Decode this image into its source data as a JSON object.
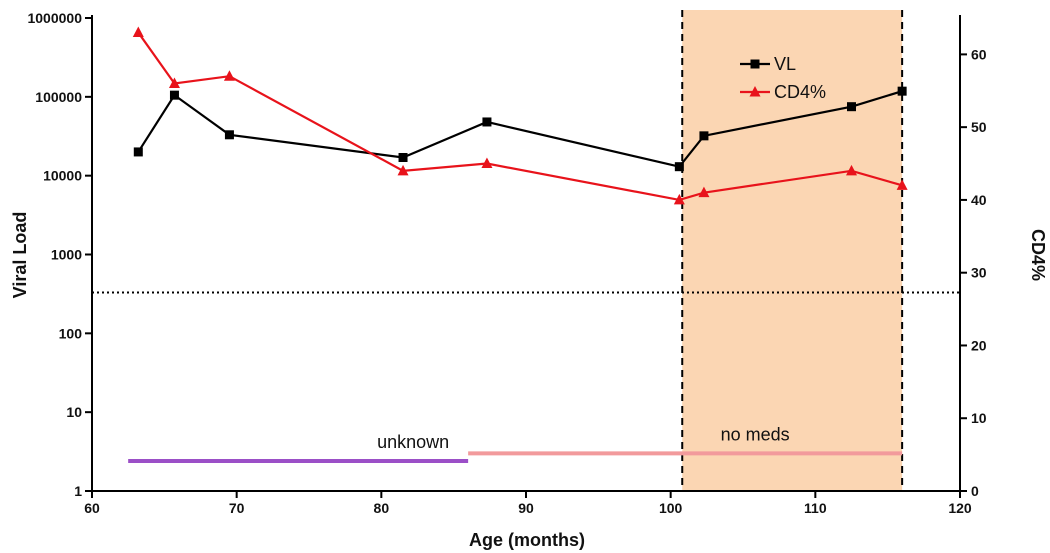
{
  "chart_data": {
    "type": "line",
    "xlabel": "Age (months)",
    "ylabel_left": "Viral Load",
    "ylabel_right": "CD4%",
    "x_range": [
      60,
      120
    ],
    "x_ticks": [
      60,
      70,
      80,
      90,
      100,
      110,
      120
    ],
    "y_left_scale": "log",
    "y_left_range": [
      1,
      1000000
    ],
    "y_left_ticks": [
      1,
      10,
      100,
      1000,
      10000,
      100000,
      1000000
    ],
    "y_right_range": [
      0,
      65
    ],
    "y_right_ticks": [
      0,
      10,
      20,
      30,
      40,
      50,
      60
    ],
    "grid": false,
    "legend_position": "top-right",
    "series": [
      {
        "name": "VL",
        "axis": "left",
        "color": "#000000",
        "marker": "square",
        "x": [
          63.2,
          65.7,
          69.5,
          81.5,
          87.3,
          100.6,
          102.3,
          112.5,
          116.0
        ],
        "y": [
          20000,
          105000,
          33000,
          17000,
          48000,
          13000,
          32000,
          75000,
          118000
        ]
      },
      {
        "name": "CD4%",
        "axis": "right",
        "color": "#e8131b",
        "marker": "triangle",
        "x": [
          63.2,
          65.7,
          69.5,
          81.5,
          87.3,
          100.6,
          102.3,
          112.5,
          116.0
        ],
        "y": [
          63,
          56,
          57,
          44,
          45,
          40,
          41,
          44,
          42
        ]
      }
    ],
    "reference_line": {
      "axis": "left",
      "y": 330,
      "style": "dotted",
      "color": "#000000"
    },
    "shaded_region": {
      "x_start": 100.8,
      "x_end": 116.0,
      "color": "#fbd6b3",
      "border": "dashed"
    },
    "annotations": [
      {
        "text": "unknown",
        "x_start": 62.5,
        "x_end": 86.0,
        "y": 2.4,
        "color": "#9b4fc7"
      },
      {
        "text": "no meds",
        "x_start": 86.0,
        "x_end": 116.0,
        "y": 3.0,
        "color": "#f29a9c"
      }
    ]
  }
}
